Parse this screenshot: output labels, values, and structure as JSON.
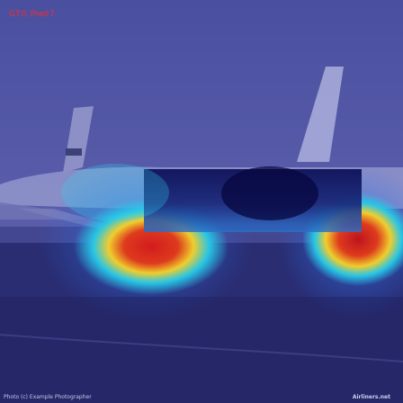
{
  "overlay": {
    "label": "GT:0, Pred:7",
    "label_color": "#ff2a2a"
  },
  "photo": {
    "credit_left": "Photo (c) Example Photographer",
    "credit_right": "Airliners.net"
  },
  "colors": {
    "sky": "#4a4f9a",
    "ground": "#2a2d72",
    "heat_hot": "#e0281e",
    "heat_warm": "#f2d02c",
    "heat_cool": "#2bc7e8"
  }
}
